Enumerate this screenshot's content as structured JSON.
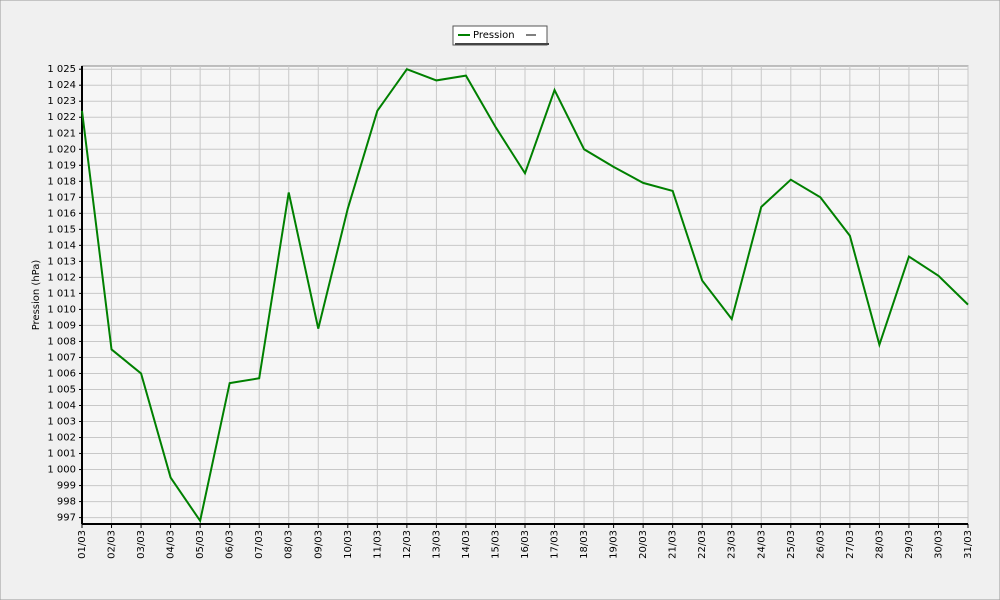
{
  "chart_data": {
    "type": "line",
    "y_label": "Pression (hPa)",
    "categories": [
      "01/03",
      "02/03",
      "03/03",
      "04/03",
      "05/03",
      "06/03",
      "07/03",
      "08/03",
      "09/03",
      "10/03",
      "11/03",
      "12/03",
      "13/03",
      "14/03",
      "15/03",
      "16/03",
      "17/03",
      "18/03",
      "19/03",
      "20/03",
      "21/03",
      "22/03",
      "23/03",
      "24/03",
      "25/03",
      "26/03",
      "27/03",
      "28/03",
      "29/03",
      "30/03",
      "31/03"
    ],
    "series": [
      {
        "name": "Pression",
        "color": "#008000",
        "values": [
          1022.4,
          1007.5,
          1006.0,
          999.5,
          996.8,
          1005.4,
          1005.7,
          1017.3,
          1008.8,
          1016.3,
          1022.4,
          1025.0,
          1024.3,
          1024.6,
          1021.4,
          1018.5,
          1023.7,
          1020.0,
          1018.9,
          1017.9,
          1017.4,
          1011.8,
          1009.4,
          1016.4,
          1018.1,
          1017.0,
          1014.6,
          1007.8,
          1013.3,
          1012.1,
          1010.3
        ]
      }
    ],
    "ylim": [
      996.6,
      1025.2
    ],
    "yticks": [
      997,
      998,
      999,
      {
        "value": 1000,
        "label": "1 000"
      },
      {
        "value": 1001,
        "label": "1 001"
      },
      {
        "value": 1002,
        "label": "1 002"
      },
      {
        "value": 1003,
        "label": "1 003"
      },
      {
        "value": 1004,
        "label": "1 004"
      },
      {
        "value": 1005,
        "label": "1 005"
      },
      {
        "value": 1006,
        "label": "1 006"
      },
      {
        "value": 1007,
        "label": "1 007"
      },
      {
        "value": 1008,
        "label": "1 008"
      },
      {
        "value": 1009,
        "label": "1 009"
      },
      {
        "value": 1010,
        "label": "1 010"
      },
      {
        "value": 1011,
        "label": "1 011"
      },
      {
        "value": 1012,
        "label": "1 012"
      },
      {
        "value": 1013,
        "label": "1 013"
      },
      {
        "value": 1014,
        "label": "1 014"
      },
      {
        "value": 1015,
        "label": "1 015"
      },
      {
        "value": 1016,
        "label": "1 016"
      },
      {
        "value": 1017,
        "label": "1 017"
      },
      {
        "value": 1018,
        "label": "1 018"
      },
      {
        "value": 1019,
        "label": "1 019"
      },
      {
        "value": 1020,
        "label": "1 020"
      },
      {
        "value": 1021,
        "label": "1 021"
      },
      {
        "value": 1022,
        "label": "1 022"
      },
      {
        "value": 1023,
        "label": "1 023"
      },
      {
        "value": 1024,
        "label": "1 024"
      },
      {
        "value": 1025,
        "label": "1 025"
      }
    ],
    "grid": true
  }
}
